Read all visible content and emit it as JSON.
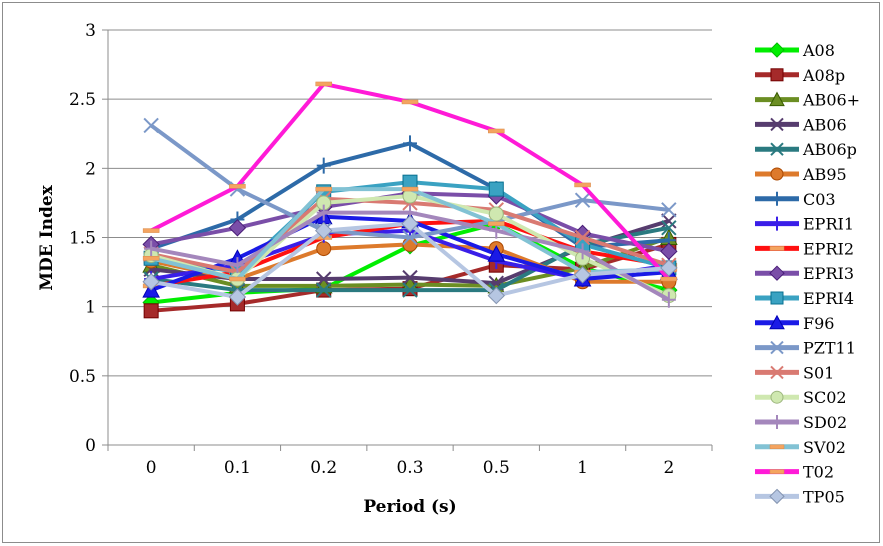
{
  "chart_data": {
    "type": "line",
    "title": "",
    "xlabel": "Period (s)",
    "ylabel": "MDE Index",
    "categories": [
      "0",
      "0.1",
      "0.2",
      "0.3",
      "0.5",
      "1",
      "2"
    ],
    "ylim": [
      0,
      3
    ],
    "yticks": [
      "0",
      "0.5",
      "1",
      "1.5",
      "2",
      "2.5",
      "3"
    ],
    "grid": "horizontal",
    "legend_position": "right",
    "series": [
      {
        "name": "A08",
        "color": "#00ee00",
        "marker": "diamond",
        "values": [
          1.03,
          1.1,
          1.13,
          1.44,
          1.6,
          1.28,
          1.12
        ]
      },
      {
        "name": "A08p",
        "color": "#a52a2a",
        "marker": "square",
        "values": [
          0.97,
          1.02,
          1.12,
          1.13,
          1.3,
          1.27,
          1.45
        ]
      },
      {
        "name": "AB06+",
        "color": "#6b8e23",
        "marker": "triangle",
        "values": [
          1.3,
          1.15,
          1.15,
          1.16,
          1.15,
          1.28,
          1.5
        ]
      },
      {
        "name": "AB06",
        "color": "#563c6e",
        "marker": "x",
        "values": [
          1.27,
          1.2,
          1.2,
          1.21,
          1.17,
          1.43,
          1.62
        ]
      },
      {
        "name": "AB06p",
        "color": "#2a7a80",
        "marker": "x",
        "values": [
          1.2,
          1.12,
          1.12,
          1.12,
          1.12,
          1.45,
          1.57
        ]
      },
      {
        "name": "AB95",
        "color": "#dd7a2c",
        "marker": "circle",
        "values": [
          1.33,
          1.2,
          1.42,
          1.45,
          1.42,
          1.18,
          1.18
        ]
      },
      {
        "name": "C03",
        "color": "#2d6aa8",
        "marker": "plus",
        "values": [
          1.42,
          1.63,
          2.02,
          2.18,
          1.85,
          1.43,
          1.48
        ]
      },
      {
        "name": "EPRI1",
        "color": "#3a1ee8",
        "marker": "plus",
        "values": [
          1.2,
          1.3,
          1.52,
          1.55,
          1.33,
          1.2,
          1.3
        ]
      },
      {
        "name": "EPRI2",
        "color": "#ff1010",
        "marker": "dash",
        "values": [
          1.15,
          1.25,
          1.5,
          1.6,
          1.62,
          1.4,
          1.3
        ]
      },
      {
        "name": "EPRI3",
        "color": "#7a4ea8",
        "marker": "diamond",
        "values": [
          1.45,
          1.57,
          1.72,
          1.82,
          1.8,
          1.53,
          1.4
        ]
      },
      {
        "name": "EPRI4",
        "color": "#3aa2c2",
        "marker": "square",
        "values": [
          1.35,
          1.25,
          1.83,
          1.9,
          1.85,
          1.45,
          1.28
        ]
      },
      {
        "name": "F96",
        "color": "#1a1ae6",
        "marker": "triangle",
        "values": [
          1.12,
          1.35,
          1.65,
          1.62,
          1.38,
          1.2,
          1.25
        ]
      },
      {
        "name": "PZT11",
        "color": "#7b98c8",
        "marker": "x",
        "values": [
          2.31,
          1.85,
          1.55,
          1.5,
          1.62,
          1.77,
          1.7
        ]
      },
      {
        "name": "S01",
        "color": "#d97a72",
        "marker": "x",
        "values": [
          1.38,
          1.25,
          1.78,
          1.75,
          1.7,
          1.5,
          1.3
        ]
      },
      {
        "name": "SC02",
        "color": "#cfe8b0",
        "marker": "circle",
        "values": [
          1.37,
          1.2,
          1.75,
          1.8,
          1.67,
          1.35,
          1.08
        ]
      },
      {
        "name": "SD02",
        "color": "#a487bc",
        "marker": "plus",
        "values": [
          1.42,
          1.3,
          1.68,
          1.68,
          1.55,
          1.4,
          1.05
        ]
      },
      {
        "name": "SV02",
        "color": "#82c2d4",
        "marker": "dash",
        "values": [
          1.35,
          1.2,
          1.85,
          1.85,
          1.6,
          1.25,
          1.27
        ]
      },
      {
        "name": "T02",
        "color": "#ff1ad7",
        "marker": "dash",
        "values": [
          1.55,
          1.87,
          2.61,
          2.48,
          2.27,
          1.88,
          1.2
        ]
      },
      {
        "name": "TP05",
        "color": "#b6c6e2",
        "marker": "diamond",
        "values": [
          1.18,
          1.07,
          1.55,
          1.6,
          1.08,
          1.23,
          1.28
        ]
      }
    ]
  }
}
